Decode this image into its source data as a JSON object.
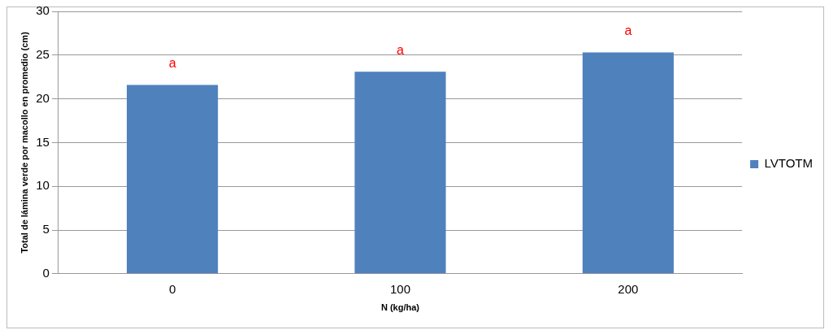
{
  "chart_data": {
    "type": "bar",
    "xlabel": "N (kg/ha)",
    "ylabel": "Total de lámina verde por macollo en promedio (cm)",
    "categories": [
      "0",
      "100",
      "200"
    ],
    "series": [
      {
        "name": "LVTOTM",
        "color": "#4f81bd",
        "values": [
          21.6,
          23.1,
          25.3
        ]
      }
    ],
    "ylim": [
      0,
      30
    ],
    "yticks": [
      0,
      5,
      10,
      15,
      20,
      25,
      30
    ],
    "grid": "y",
    "legend": "right",
    "annotations": [
      {
        "text": "a",
        "x": "0",
        "y": 21.6
      },
      {
        "text": "a",
        "x": "100",
        "y": 23.1
      },
      {
        "text": "a",
        "x": "200",
        "y": 25.3
      }
    ]
  }
}
